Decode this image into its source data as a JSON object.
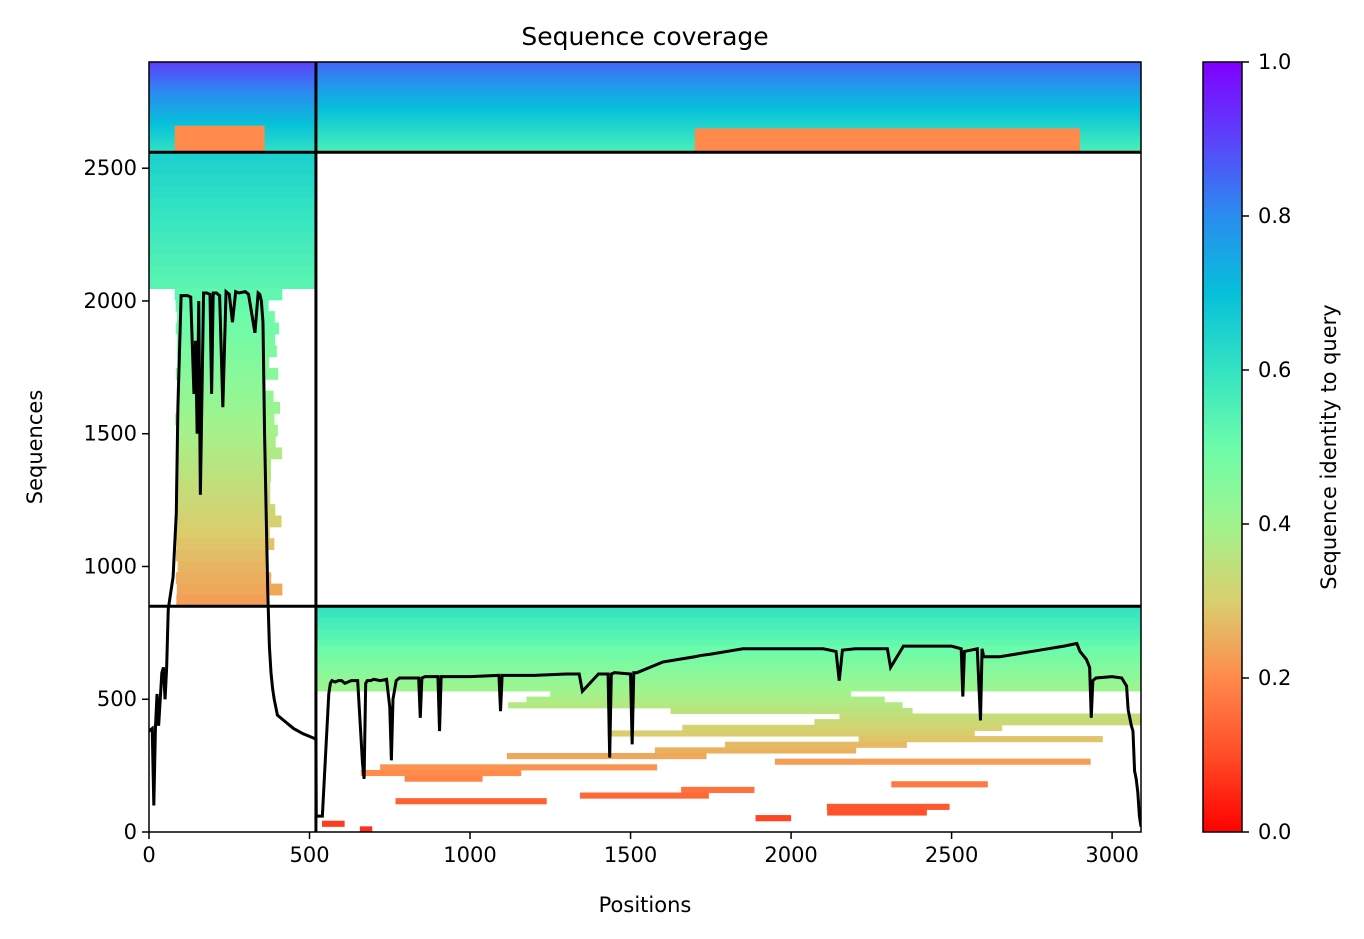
{
  "chart_data": {
    "type": "heatmap",
    "title": "Sequence coverage",
    "xlabel": "Positions",
    "ylabel": "Sequences",
    "xlim": [
      0,
      3090
    ],
    "ylim": [
      0,
      2900
    ],
    "xticks": [
      0,
      500,
      1000,
      1500,
      2000,
      2500,
      3000
    ],
    "yticks": [
      0,
      500,
      1000,
      1500,
      2000,
      2500
    ],
    "colorbar": {
      "label": "Sequence identity to query",
      "range": [
        0.0,
        1.0
      ],
      "ticks": [
        "0.0",
        "0.2",
        "0.4",
        "0.6",
        "0.8",
        "1.0"
      ],
      "colormap": "rainbow_r"
    },
    "chain_boundaries": {
      "x": 520,
      "y": [
        850,
        2560
      ]
    },
    "blocks": [
      {
        "x": [
          0,
          520
        ],
        "y": [
          2560,
          2900
        ],
        "identity_top": 0.9,
        "identity_bottom": 0.6,
        "low_identity_band": {
          "x": [
            80,
            360
          ],
          "y": [
            2560,
            2660
          ],
          "identity": 0.2
        }
      },
      {
        "x": [
          520,
          3090
        ],
        "y": [
          2560,
          2900
        ],
        "identity_top": 0.85,
        "identity_bottom": 0.55,
        "low_identity_band": {
          "x": [
            1700,
            2900
          ],
          "y": [
            2560,
            2650
          ],
          "identity": 0.2
        }
      },
      {
        "x": [
          0,
          520
        ],
        "y": [
          850,
          2560
        ],
        "identity_top": 0.65,
        "identity_bottom": 0.22,
        "core": [
          80,
          360
        ]
      },
      {
        "x": [
          520,
          3090
        ],
        "y": [
          0,
          850
        ],
        "identity_top": 0.6,
        "identity_bottom": 0.05
      }
    ],
    "coverage_line": {
      "name": "coverage",
      "x": [
        0,
        10,
        15,
        20,
        25,
        30,
        40,
        45,
        50,
        55,
        60,
        65,
        75,
        85,
        90,
        100,
        120,
        130,
        140,
        145,
        150,
        155,
        160,
        170,
        180,
        190,
        195,
        200,
        210,
        220,
        230,
        240,
        250,
        260,
        270,
        280,
        300,
        310,
        330,
        340,
        345,
        350,
        355,
        360,
        365,
        370,
        375,
        380,
        385,
        390,
        400,
        420,
        450,
        480,
        500,
        520,
        521,
        540,
        560,
        565,
        570,
        580,
        590,
        600,
        610,
        620,
        630,
        650,
        665,
        670,
        675,
        680,
        690,
        700,
        720,
        740,
        750,
        755,
        760,
        770,
        780,
        800,
        840,
        845,
        850,
        860,
        900,
        905,
        910,
        920,
        1000,
        1090,
        1095,
        1100,
        1110,
        1200,
        1300,
        1340,
        1350,
        1400,
        1430,
        1435,
        1440,
        1450,
        1500,
        1505,
        1510,
        1520,
        1560,
        1600,
        1650,
        1700,
        1720,
        1750,
        1800,
        1850,
        1900,
        1950,
        2000,
        2050,
        2100,
        2140,
        2150,
        2160,
        2200,
        2250,
        2300,
        2310,
        2350,
        2400,
        2450,
        2500,
        2530,
        2535,
        2540,
        2580,
        2590,
        2595,
        2600,
        2650,
        2700,
        2750,
        2800,
        2850,
        2890,
        2900,
        2920,
        2930,
        2935,
        2940,
        2950,
        3000,
        3030,
        3045,
        3050,
        3060,
        3065,
        3070,
        3075,
        3080,
        3085,
        3090
      ],
      "y": [
        380,
        390,
        100,
        390,
        520,
        400,
        600,
        620,
        500,
        620,
        840,
        880,
        960,
        1200,
        1600,
        2020,
        2020,
        2015,
        1650,
        1850,
        1500,
        2000,
        1270,
        2030,
        2030,
        2025,
        1650,
        2030,
        2030,
        2020,
        1600,
        2035,
        2025,
        1920,
        2035,
        2030,
        2035,
        2025,
        1880,
        2030,
        2025,
        2000,
        1920,
        1500,
        1200,
        900,
        700,
        600,
        540,
        500,
        440,
        420,
        390,
        370,
        360,
        350,
        60,
        60,
        520,
        560,
        570,
        565,
        570,
        570,
        560,
        565,
        570,
        570,
        260,
        200,
        560,
        570,
        570,
        575,
        570,
        575,
        470,
        270,
        500,
        570,
        580,
        580,
        580,
        430,
        580,
        585,
        585,
        380,
        585,
        585,
        585,
        590,
        455,
        590,
        590,
        590,
        595,
        595,
        530,
        595,
        595,
        280,
        595,
        600,
        595,
        330,
        600,
        600,
        620,
        640,
        650,
        660,
        665,
        670,
        680,
        690,
        690,
        690,
        690,
        690,
        690,
        680,
        570,
        685,
        690,
        690,
        690,
        620,
        700,
        700,
        700,
        700,
        690,
        510,
        680,
        690,
        420,
        690,
        660,
        660,
        670,
        680,
        690,
        700,
        710,
        680,
        650,
        620,
        430,
        570,
        580,
        585,
        580,
        550,
        460,
        400,
        380,
        230,
        200,
        150,
        60,
        20
      ]
    }
  }
}
